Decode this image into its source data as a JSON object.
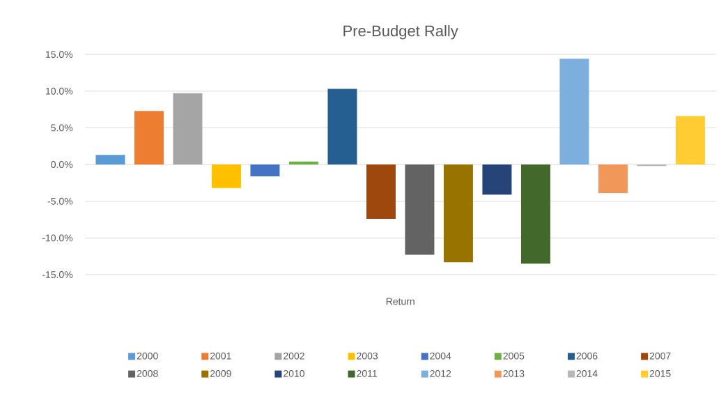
{
  "chart_data": {
    "type": "bar",
    "title": "Pre-Budget Rally",
    "categories": [
      "Return"
    ],
    "series": [
      {
        "name": "2000",
        "color": "#5b9bd5",
        "values": [
          1.3
        ]
      },
      {
        "name": "2001",
        "color": "#ed7d31",
        "values": [
          7.3
        ]
      },
      {
        "name": "2002",
        "color": "#a5a5a5",
        "values": [
          9.7
        ]
      },
      {
        "name": "2003",
        "color": "#ffc000",
        "values": [
          -3.2
        ]
      },
      {
        "name": "2004",
        "color": "#4472c4",
        "values": [
          -1.6
        ]
      },
      {
        "name": "2005",
        "color": "#70ad47",
        "values": [
          0.4
        ]
      },
      {
        "name": "2006",
        "color": "#255e91",
        "values": [
          10.3
        ]
      },
      {
        "name": "2007",
        "color": "#9e480e",
        "values": [
          -7.4
        ]
      },
      {
        "name": "2008",
        "color": "#636363",
        "values": [
          -12.3
        ]
      },
      {
        "name": "2009",
        "color": "#997300",
        "values": [
          -13.3
        ]
      },
      {
        "name": "2010",
        "color": "#264478",
        "values": [
          -4.1
        ]
      },
      {
        "name": "2011",
        "color": "#43682b",
        "values": [
          -13.5
        ]
      },
      {
        "name": "2012",
        "color": "#7cafdd",
        "values": [
          14.4
        ]
      },
      {
        "name": "2013",
        "color": "#f1975a",
        "values": [
          -3.9
        ]
      },
      {
        "name": "2014",
        "color": "#b7b7b7",
        "values": [
          -0.2
        ]
      },
      {
        "name": "2015",
        "color": "#ffcd33",
        "values": [
          6.6
        ]
      }
    ],
    "ylim": [
      -15,
      15
    ],
    "yticks": [
      {
        "value": -15,
        "label": "-15.0%"
      },
      {
        "value": -10,
        "label": "-10.0%"
      },
      {
        "value": -5,
        "label": "-5.0%"
      },
      {
        "value": 0,
        "label": "0.0%"
      },
      {
        "value": 5,
        "label": "5.0%"
      },
      {
        "value": 10,
        "label": "10.0%"
      },
      {
        "value": 15,
        "label": "15.0%"
      }
    ],
    "grid": "y",
    "legend": "bottom"
  }
}
